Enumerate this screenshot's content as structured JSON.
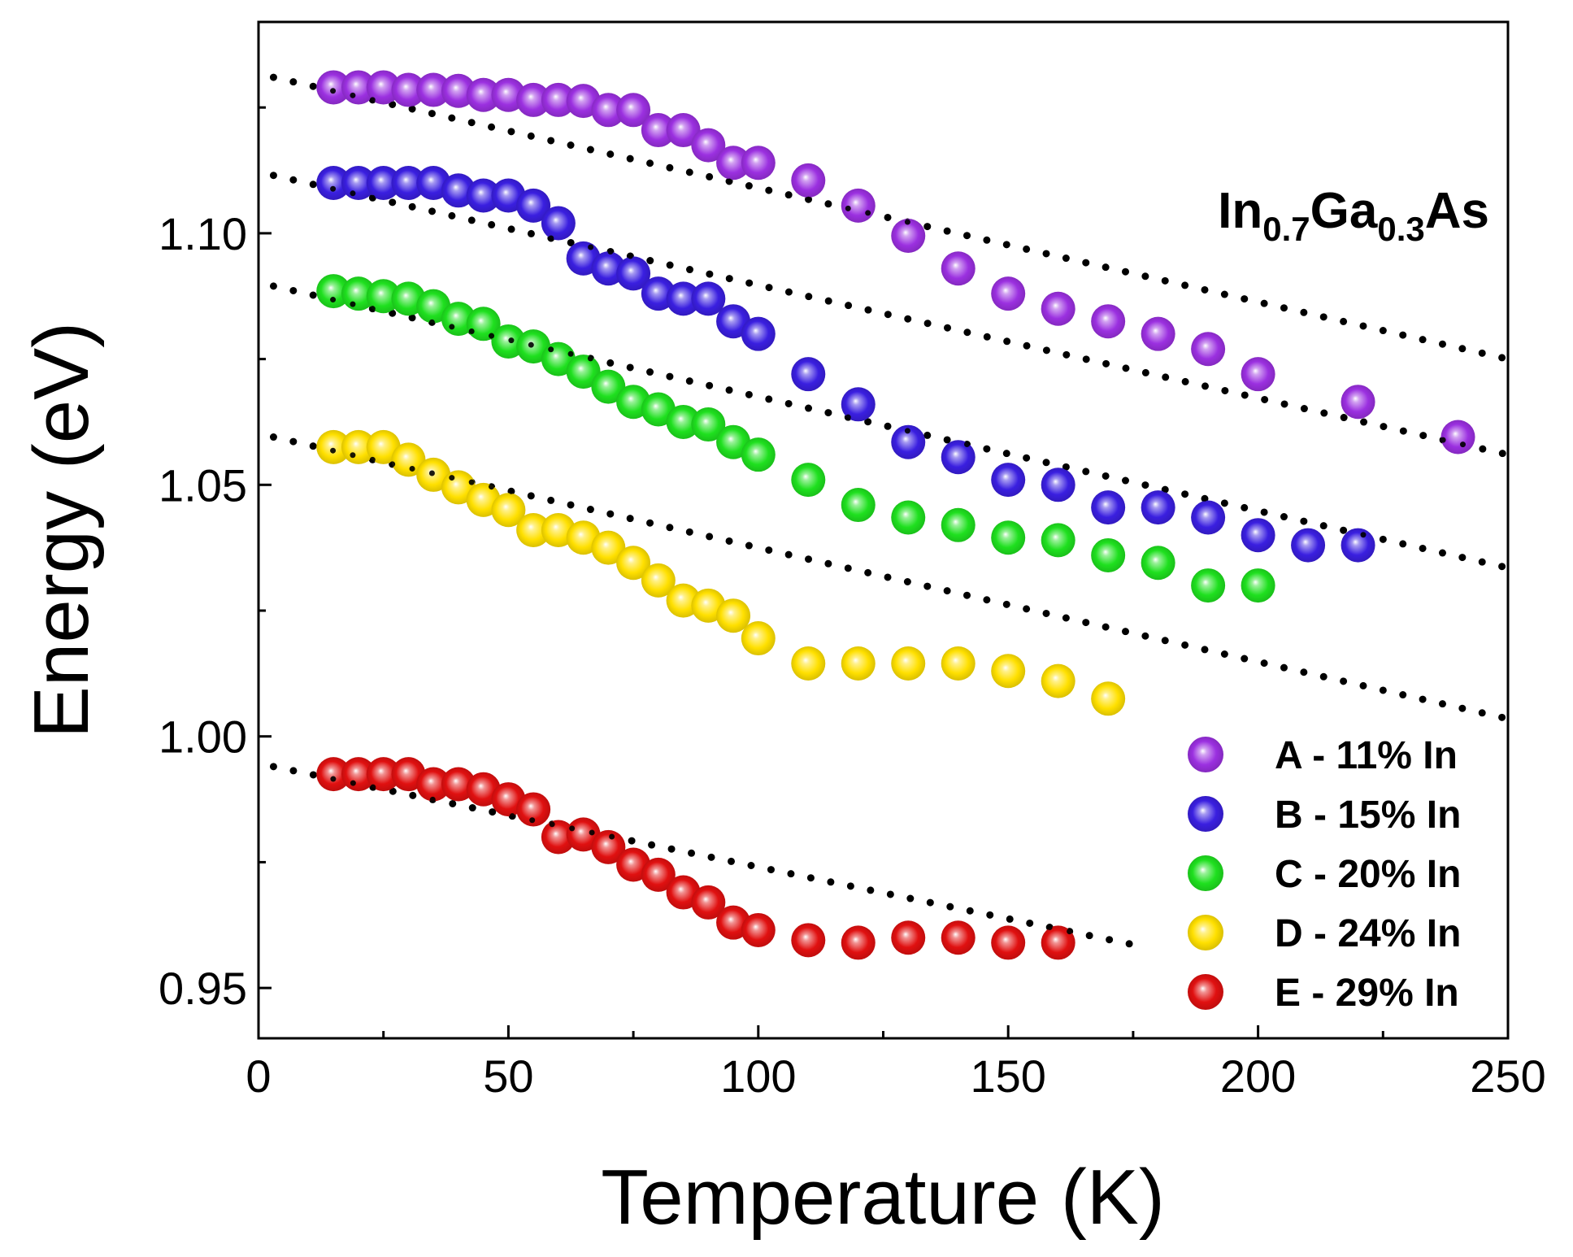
{
  "chart_data": {
    "type": "scatter",
    "xlabel": "Temperature (K)",
    "ylabel": "Energy (eV)",
    "xlim": [
      0,
      250
    ],
    "ylim": [
      0.94,
      1.142
    ],
    "x_ticks": [
      0,
      50,
      100,
      150,
      200,
      250
    ],
    "x_tick_labels": [
      "0",
      "50",
      "100",
      "150",
      "200",
      "250"
    ],
    "y_ticks": [
      0.95,
      1.0,
      1.05,
      1.1
    ],
    "y_tick_labels": [
      "0.95",
      "1.00",
      "1.05",
      "1.10"
    ],
    "grid": false,
    "legend_position": "bottom-right",
    "annotation": {
      "base1": "In",
      "sub1": "0.7",
      "base2": "Ga",
      "sub2": "0.3",
      "base3": "As"
    },
    "series": [
      {
        "name": "A - 11% In",
        "color": "#9b30e0",
        "x": [
          15,
          20,
          25,
          30,
          35,
          40,
          45,
          50,
          55,
          60,
          65,
          70,
          75,
          80,
          85,
          90,
          95,
          100,
          110,
          120,
          130,
          140,
          150,
          160,
          170,
          180,
          190,
          200,
          220,
          240
        ],
        "y": [
          1.129,
          1.129,
          1.129,
          1.1285,
          1.1285,
          1.1283,
          1.1275,
          1.1275,
          1.1265,
          1.1265,
          1.1263,
          1.1245,
          1.1245,
          1.1205,
          1.1205,
          1.1175,
          1.114,
          1.114,
          1.1105,
          1.1055,
          1.0995,
          1.093,
          1.088,
          1.085,
          1.0825,
          1.08,
          1.077,
          1.072,
          1.0665,
          1.0595
        ]
      },
      {
        "name": "B - 15% In",
        "color": "#3a1fe0",
        "x": [
          15,
          20,
          25,
          30,
          35,
          40,
          45,
          50,
          55,
          60,
          65,
          70,
          75,
          80,
          85,
          90,
          95,
          100,
          110,
          120,
          130,
          140,
          150,
          160,
          170,
          180,
          190,
          200,
          210,
          220
        ],
        "y": [
          1.11,
          1.11,
          1.11,
          1.11,
          1.11,
          1.1085,
          1.1075,
          1.1075,
          1.1055,
          1.102,
          1.095,
          1.093,
          1.092,
          1.088,
          1.087,
          1.087,
          1.0825,
          1.08,
          1.072,
          1.066,
          1.0585,
          1.0555,
          1.051,
          1.05,
          1.0455,
          1.0455,
          1.0435,
          1.04,
          1.038,
          1.038
        ]
      },
      {
        "name": "C - 20% In",
        "color": "#1fe01f",
        "x": [
          15,
          20,
          25,
          30,
          35,
          40,
          45,
          50,
          55,
          60,
          65,
          70,
          75,
          80,
          85,
          90,
          95,
          100,
          110,
          120,
          130,
          140,
          150,
          160,
          170,
          180,
          190,
          200
        ],
        "y": [
          1.0885,
          1.088,
          1.0875,
          1.087,
          1.0855,
          1.083,
          1.082,
          1.0785,
          1.0775,
          1.075,
          1.0725,
          1.0695,
          1.0665,
          1.065,
          1.0625,
          1.062,
          1.0585,
          1.056,
          1.051,
          1.046,
          1.0435,
          1.042,
          1.0395,
          1.039,
          1.036,
          1.0345,
          1.03,
          1.03
        ]
      },
      {
        "name": "D - 24% In",
        "color": "#ffe000",
        "x": [
          15,
          20,
          25,
          30,
          35,
          40,
          45,
          50,
          55,
          60,
          65,
          70,
          75,
          80,
          85,
          90,
          95,
          100,
          110,
          120,
          130,
          140,
          150,
          160,
          170
        ],
        "y": [
          1.0575,
          1.0575,
          1.0575,
          1.055,
          1.052,
          1.0495,
          1.047,
          1.045,
          1.041,
          1.041,
          1.0395,
          1.0375,
          1.0345,
          1.031,
          1.027,
          1.026,
          1.024,
          1.0195,
          1.0145,
          1.0145,
          1.0145,
          1.0145,
          1.013,
          1.011,
          1.0075
        ]
      },
      {
        "name": "E - 29% In",
        "color": "#e01010",
        "x": [
          15,
          20,
          25,
          30,
          35,
          40,
          45,
          50,
          55,
          60,
          65,
          70,
          75,
          80,
          85,
          90,
          95,
          100,
          110,
          120,
          130,
          140,
          150,
          160
        ],
        "y": [
          0.9925,
          0.9925,
          0.9925,
          0.9925,
          0.9905,
          0.9905,
          0.9895,
          0.9875,
          0.9855,
          0.98,
          0.9805,
          0.978,
          0.9745,
          0.9725,
          0.969,
          0.967,
          0.963,
          0.9615,
          0.9595,
          0.959,
          0.96,
          0.96,
          0.959,
          0.959
        ]
      }
    ],
    "fit_lines": [
      {
        "series": "A - 11% In",
        "x": [
          3,
          250
        ],
        "y": [
          1.131,
          1.075
        ]
      },
      {
        "series": "B - 15% In",
        "x": [
          3,
          250
        ],
        "y": [
          1.1115,
          1.056
        ]
      },
      {
        "series": "C - 20% In",
        "x": [
          3,
          250
        ],
        "y": [
          1.0895,
          1.0335
        ]
      },
      {
        "series": "D - 24% In",
        "x": [
          3,
          250
        ],
        "y": [
          1.0595,
          1.0035
        ]
      },
      {
        "series": "E - 29% In",
        "x": [
          3,
          178
        ],
        "y": [
          0.994,
          0.958
        ]
      }
    ]
  }
}
